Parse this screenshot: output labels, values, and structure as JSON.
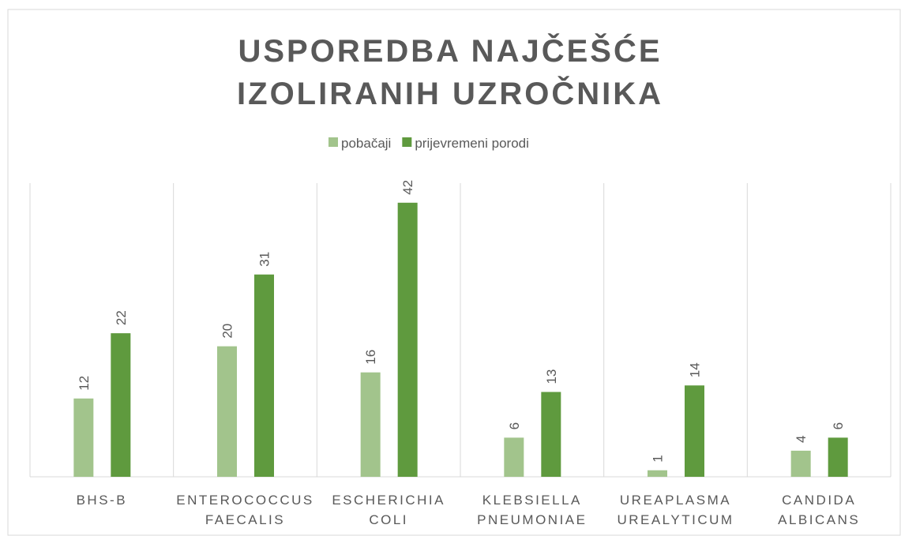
{
  "chart_data": {
    "type": "bar",
    "title": "USPOREDBA NAJČEŠĆE IZOLIRANIH UZROČNIKA",
    "categories": [
      "BHS-B",
      "ENTEROCOCCUS FAECALIS",
      "ESCHERICHIA COLI",
      "KLEBSIELLA PNEUMONIAE",
      "UREAPLASMA UREALYTICUM",
      "CANDIDA ALBICANS"
    ],
    "series": [
      {
        "name": "pobačaji",
        "color": "#a2c48c",
        "values": [
          12,
          20,
          16,
          6,
          1,
          4
        ]
      },
      {
        "name": "prijevremeni porodi",
        "color": "#5f9a3e",
        "values": [
          22,
          31,
          42,
          13,
          14,
          6
        ]
      }
    ],
    "ylim": [
      0,
      45
    ],
    "legend": "top"
  }
}
